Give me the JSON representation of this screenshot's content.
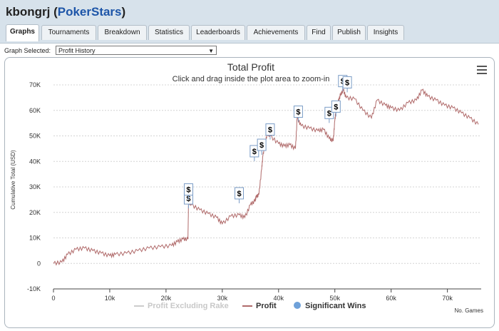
{
  "header": {
    "user": "kbongrj",
    "open_paren": " (",
    "site": "PokerStars",
    "close_paren": ")"
  },
  "tabs": [
    {
      "label": "Graphs",
      "active": true
    },
    {
      "label": "Tournaments"
    },
    {
      "label": "Breakdown"
    },
    {
      "label": "Statistics"
    },
    {
      "label": "Leaderboards"
    },
    {
      "label": "Achievements"
    },
    {
      "label": "Find"
    },
    {
      "label": "Publish"
    },
    {
      "label": "Insights"
    }
  ],
  "graph_selector": {
    "label": "Graph Selected:",
    "value": "Profit History"
  },
  "menu": {
    "icon": "hamburger-menu-icon"
  },
  "chart_data": {
    "type": "line",
    "title": "Total Profit",
    "subtitle": "Click and drag inside the plot area to zoom-in",
    "xlabel": "No. Games",
    "ylabel": "Cumulative Total (USD)",
    "xlim": [
      0,
      76000
    ],
    "ylim": [
      -10000,
      70000
    ],
    "x_ticks": [
      0,
      10000,
      20000,
      30000,
      40000,
      50000,
      60000,
      70000
    ],
    "x_tick_labels": [
      "0",
      "10k",
      "20k",
      "30k",
      "40k",
      "50k",
      "60k",
      "70k"
    ],
    "y_ticks": [
      -10000,
      0,
      10000,
      20000,
      30000,
      40000,
      50000,
      60000,
      70000
    ],
    "y_tick_labels": [
      "-10K",
      "0",
      "10K",
      "20K",
      "30K",
      "40K",
      "50K",
      "60K",
      "70K"
    ],
    "legend": [
      "Profit Excluding Rake",
      "Profit",
      "Significant Wins"
    ],
    "colors": {
      "profit": "#b06a6a",
      "excl_rake": "#cccccc",
      "marker": "#6fa1d9",
      "grid": "#d4d4d4"
    },
    "series": [
      {
        "name": "Profit",
        "x": [
          0,
          1500,
          2500,
          4000,
          5500,
          7000,
          8500,
          10000,
          11000,
          13000,
          15000,
          17000,
          19000,
          21000,
          22000,
          23000,
          23900,
          24000,
          24500,
          26000,
          27500,
          29000,
          30000,
          31500,
          33000,
          34000,
          35000,
          35800,
          36000,
          36500,
          37000,
          37200,
          37600,
          38000,
          38500,
          40000,
          41000,
          42000,
          43000,
          43300,
          44000,
          45500,
          47000,
          48000,
          49000,
          49700,
          50000,
          50200,
          50600,
          51000,
          51500,
          52000,
          53500,
          55000,
          56500,
          57500,
          59000,
          60000,
          61500,
          63000,
          64500,
          65500,
          66500,
          68000,
          69500,
          71000,
          72500,
          74000,
          75500
        ],
        "values": [
          0,
          500,
          3500,
          5500,
          6000,
          5000,
          4000,
          3000,
          3500,
          4000,
          5000,
          6000,
          6500,
          7000,
          8500,
          9500,
          9500,
          24000,
          23000,
          21000,
          19500,
          18000,
          15500,
          18500,
          19000,
          18000,
          23000,
          24500,
          26000,
          27000,
          37000,
          42000,
          47000,
          51000,
          50000,
          47000,
          46000,
          46500,
          45000,
          57000,
          54000,
          53000,
          52000,
          52500,
          49000,
          48000,
          56000,
          60000,
          63500,
          66000,
          68000,
          65000,
          64500,
          60000,
          57000,
          64000,
          62000,
          61000,
          60000,
          63000,
          64000,
          68000,
          65500,
          64000,
          62000,
          61000,
          59000,
          57000,
          54500
        ]
      }
    ],
    "significant_wins": [
      {
        "x": 24000,
        "y": 25500
      },
      {
        "x": 24000,
        "y": 29000
      },
      {
        "x": 33000,
        "y": 27500
      },
      {
        "x": 35700,
        "y": 44000
      },
      {
        "x": 37000,
        "y": 46500
      },
      {
        "x": 38500,
        "y": 52500
      },
      {
        "x": 43500,
        "y": 59500
      },
      {
        "x": 49000,
        "y": 59000
      },
      {
        "x": 50200,
        "y": 61500
      },
      {
        "x": 51400,
        "y": 71500
      },
      {
        "x": 52200,
        "y": 71000
      }
    ],
    "marker_symbol": "$"
  }
}
